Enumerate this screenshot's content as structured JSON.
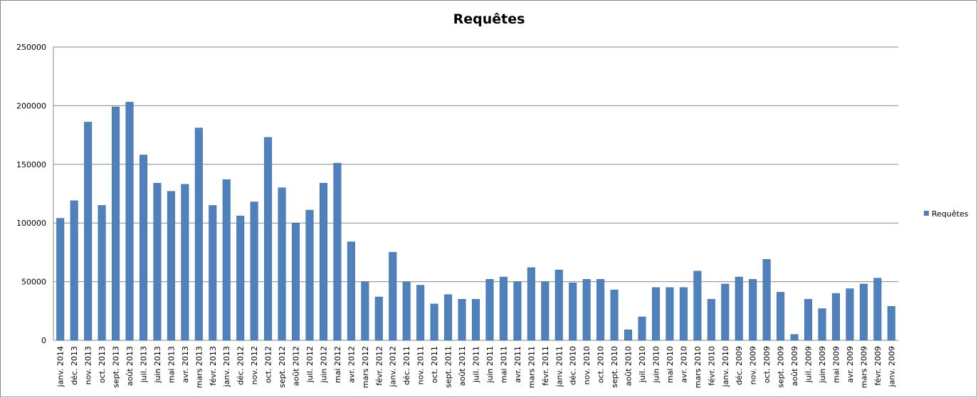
{
  "chart_data": {
    "type": "bar",
    "title": "Requêtes",
    "categories": [
      "janv. 2014",
      "déc. 2013",
      "nov. 2013",
      "oct. 2013",
      "sept. 2013",
      "août 2013",
      "juil. 2013",
      "juin 2013",
      "mai 2013",
      "avr. 2013",
      "mars 2013",
      "févr. 2013",
      "janv. 2013",
      "déc. 2012",
      "nov. 2012",
      "oct. 2012",
      "sept. 2012",
      "août 2012",
      "juil. 2012",
      "juin 2012",
      "mai 2012",
      "avr. 2012",
      "mars 2012",
      "févr. 2012",
      "janv. 2012",
      "déc. 2011",
      "nov. 2011",
      "oct. 2011",
      "sept. 2011",
      "août 2011",
      "juil. 2011",
      "juin 2011",
      "mai 2011",
      "avr. 2011",
      "mars 2011",
      "févr. 2011",
      "janv. 2011",
      "déc. 2010",
      "nov. 2010",
      "oct. 2010",
      "sept. 2010",
      "août 2010",
      "juil. 2010",
      "juin 2010",
      "mai 2010",
      "avr. 2010",
      "mars 2010",
      "févr. 2010",
      "janv. 2010",
      "déc. 2009",
      "nov. 2009",
      "oct. 2009",
      "sept. 2009",
      "août 2009",
      "juil. 2009",
      "juin 2009",
      "mai 2009",
      "avr. 2009",
      "mars 2009",
      "févr. 2009",
      "janv. 2009"
    ],
    "series": [
      {
        "name": "Requêtes",
        "color": "#4f81bd",
        "values": [
          104000,
          119000,
          186000,
          115000,
          199000,
          203000,
          158000,
          134000,
          127000,
          133000,
          181000,
          115000,
          137000,
          106000,
          118000,
          173000,
          130000,
          100000,
          111000,
          134000,
          151000,
          84000,
          50000,
          37000,
          75000,
          50000,
          47000,
          31000,
          39000,
          35000,
          35000,
          52000,
          54000,
          50000,
          62000,
          50000,
          60000,
          49000,
          52000,
          52000,
          43000,
          9000,
          20000,
          45000,
          45000,
          45000,
          59000,
          35000,
          48000,
          54000,
          52000,
          69000,
          41000,
          5000,
          35000,
          27000,
          40000,
          44000,
          48000,
          53000,
          29000
        ]
      }
    ],
    "ylim": [
      0,
      250000
    ],
    "yticks": [
      0,
      50000,
      100000,
      150000,
      200000,
      250000
    ],
    "grid": true,
    "legend": "right"
  }
}
